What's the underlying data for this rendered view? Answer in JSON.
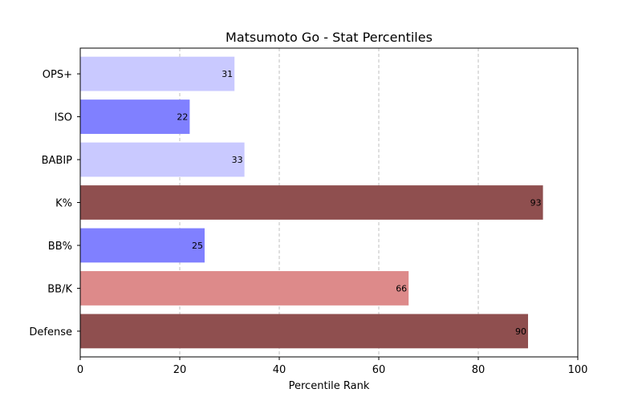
{
  "chart_data": {
    "type": "bar",
    "orientation": "horizontal",
    "title": "Matsumoto Go - Stat Percentiles",
    "xlabel": "Percentile Rank",
    "ylabel": "",
    "xlim": [
      0,
      100
    ],
    "xticks": [
      0,
      20,
      40,
      60,
      80,
      100
    ],
    "grid": "x-dashed",
    "categories": [
      "OPS+",
      "ISO",
      "BABIP",
      "K%",
      "BB%",
      "BB/K",
      "Defense"
    ],
    "values": [
      31,
      22,
      33,
      93,
      25,
      66,
      90
    ],
    "colors": [
      "#c9c9ff",
      "#8080ff",
      "#c9c9ff",
      "#8f4f4f",
      "#8080ff",
      "#dd8a8a",
      "#8f4f4f"
    ]
  }
}
